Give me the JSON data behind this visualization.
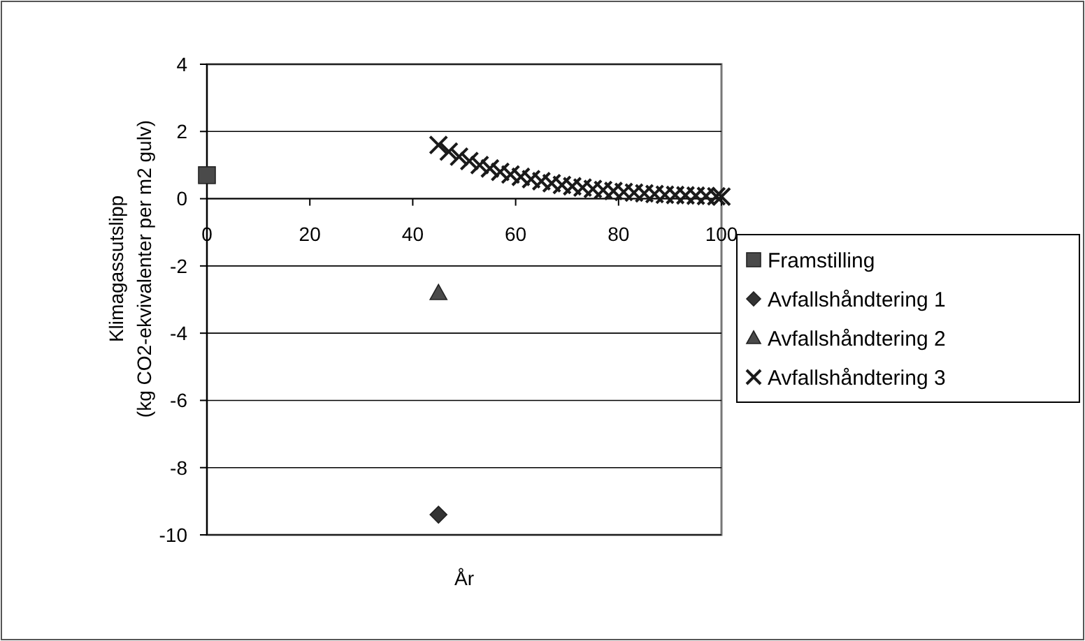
{
  "chart_data": {
    "type": "scatter",
    "xlabel": "År",
    "ylabel": "Klimagassutslipp\n(kg CO2-ekvivalenter per m2 gulv)",
    "xlim": [
      0,
      100
    ],
    "xticks": [
      0,
      20,
      40,
      60,
      80,
      100
    ],
    "ylim": [
      -10,
      4
    ],
    "yticks": [
      4,
      2,
      0,
      -2,
      -4,
      -6,
      -8,
      -10
    ],
    "grid": "y",
    "legend": "right",
    "series": [
      {
        "name": "Framstilling",
        "color": "#4a4a4a",
        "marker": "square",
        "x": [
          0
        ],
        "values": [
          0.7
        ]
      },
      {
        "name": "Avfallshåndtering 1",
        "color": "#333333",
        "marker": "diamond",
        "x": [
          45
        ],
        "values": [
          -9.4
        ]
      },
      {
        "name": "Avfallshåndtering 2",
        "color": "#4a4a4a",
        "marker": "triangle",
        "x": [
          45
        ],
        "values": [
          -2.8
        ]
      },
      {
        "name": "Avfallshåndtering 3",
        "color": "#1a1a1a",
        "marker": "cross",
        "x": [
          45,
          47,
          49,
          51,
          53,
          55,
          57,
          59,
          61,
          63,
          65,
          67,
          69,
          71,
          73,
          75,
          77,
          79,
          81,
          83,
          85,
          87,
          89,
          91,
          93,
          95,
          97,
          99,
          100
        ],
        "values": [
          1.6,
          1.4,
          1.25,
          1.12,
          1.0,
          0.9,
          0.8,
          0.72,
          0.65,
          0.58,
          0.52,
          0.46,
          0.41,
          0.37,
          0.33,
          0.29,
          0.26,
          0.23,
          0.2,
          0.18,
          0.16,
          0.14,
          0.12,
          0.11,
          0.1,
          0.09,
          0.08,
          0.07,
          0.06
        ]
      }
    ]
  }
}
